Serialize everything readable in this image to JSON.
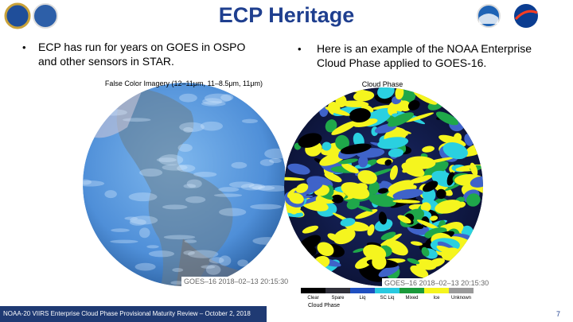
{
  "header": {
    "title": "ECP Heritage"
  },
  "bullets": [
    {
      "lines": [
        "ECP has run for years on GOES in OSPO",
        "and other sensors in STAR."
      ]
    },
    {
      "lines": [
        "Here is an example of the NOAA Enterprise",
        "Cloud Phase applied to GOES-16."
      ]
    }
  ],
  "figures": [
    {
      "title": "False Color Imagery (12–11μm, 11–8.5μm, 11μm)",
      "timestamp": "GOES–16 2018–02–13 20:15:30"
    },
    {
      "title": "Cloud Phase",
      "timestamp": "GOES–16 2018–02–13 20:15:30",
      "legend": {
        "items": [
          "Clear",
          "Spare",
          "Liq",
          "SC Liq",
          "Mixed",
          "Ice",
          "Unknown"
        ],
        "title": "Cloud Phase"
      }
    }
  ],
  "footer": {
    "text": "NOAA-20 VIIRS Enterprise Cloud Phase Provisional Maturity Review – October 2, 2018",
    "page": "7"
  }
}
